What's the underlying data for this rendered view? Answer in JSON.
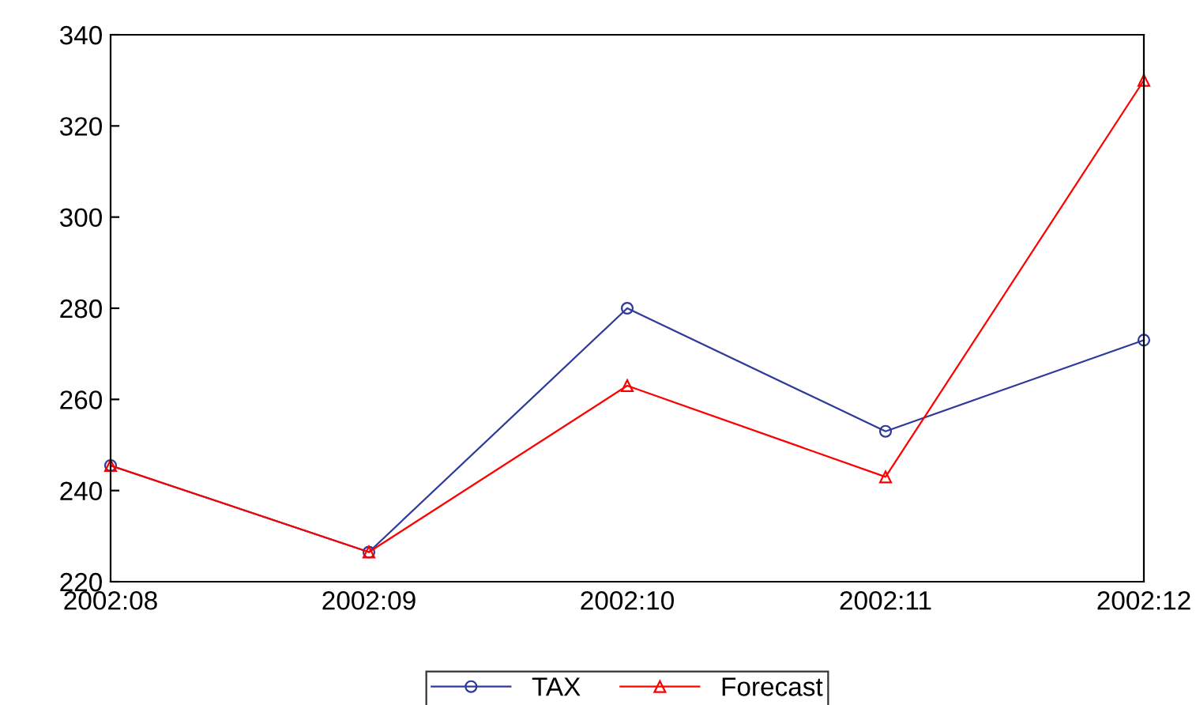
{
  "chart_data": {
    "type": "line",
    "categories": [
      "2002:08",
      "2002:09",
      "2002:10",
      "2002:11",
      "2002:12"
    ],
    "series": [
      {
        "name": "TAX",
        "color": "#2e3a9a",
        "marker": "circle",
        "values": [
          245.5,
          226.5,
          280,
          253,
          273
        ]
      },
      {
        "name": "Forecast",
        "color": "#ff0000",
        "marker": "triangle",
        "values": [
          245.5,
          226.5,
          263,
          243,
          330
        ]
      }
    ],
    "ylim": [
      220,
      340
    ],
    "yticks": [
      220,
      240,
      260,
      280,
      300,
      320,
      340
    ],
    "grid": false,
    "legend": "bottom",
    "line_style": "solid"
  }
}
